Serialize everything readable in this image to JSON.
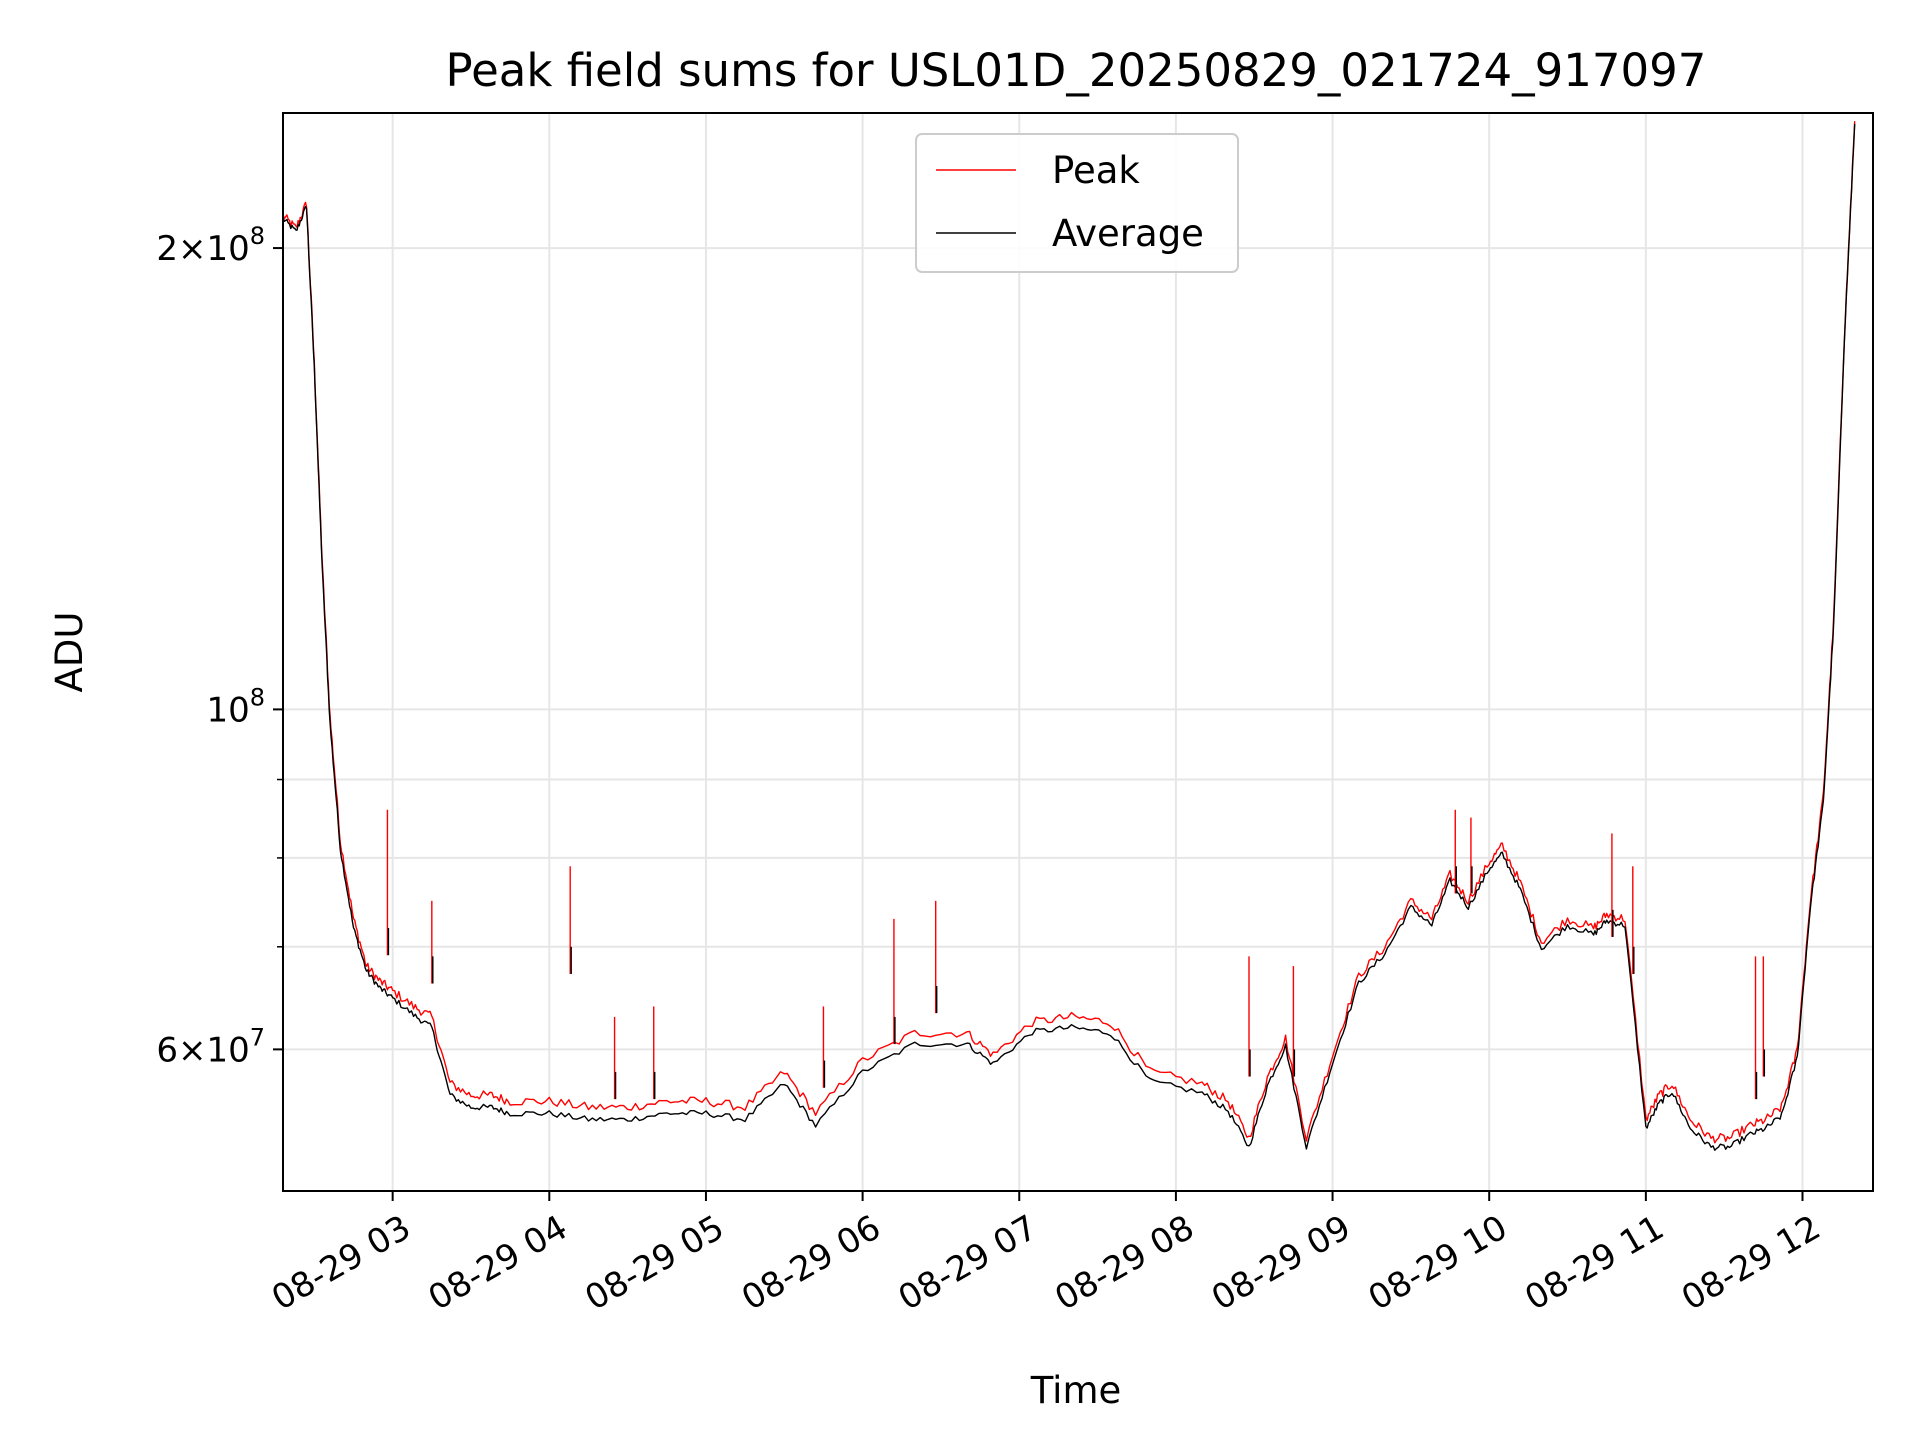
{
  "chart_data": {
    "type": "line",
    "title": "Peak field sums for USL01D_20250829_021724_917097",
    "xlabel": "Time",
    "ylabel": "ADU",
    "y_scale": "log",
    "xlim": [
      "2025-08-29 02:18",
      "2025-08-29 12:27"
    ],
    "ylim": [
      48500000,
      245000000
    ],
    "grid": true,
    "legend_position": "top-center",
    "x_ticks": [
      {
        "value": "2025-08-29 03:00",
        "label": "08-29 03"
      },
      {
        "value": "2025-08-29 04:00",
        "label": "08-29 04"
      },
      {
        "value": "2025-08-29 05:00",
        "label": "08-29 05"
      },
      {
        "value": "2025-08-29 06:00",
        "label": "08-29 06"
      },
      {
        "value": "2025-08-29 07:00",
        "label": "08-29 07"
      },
      {
        "value": "2025-08-29 08:00",
        "label": "08-29 08"
      },
      {
        "value": "2025-08-29 09:00",
        "label": "08-29 09"
      },
      {
        "value": "2025-08-29 10:00",
        "label": "08-29 10"
      },
      {
        "value": "2025-08-29 11:00",
        "label": "08-29 11"
      },
      {
        "value": "2025-08-29 12:00",
        "label": "08-29 12"
      }
    ],
    "y_ticks_major": [
      {
        "value": 60000000,
        "mantissa": "6",
        "exponent": "7"
      },
      {
        "value": 100000000,
        "mantissa": "",
        "exponent": "8"
      },
      {
        "value": 200000000,
        "mantissa": "2",
        "exponent": "8"
      }
    ],
    "y_ticks_minor": [
      70000000,
      80000000,
      90000000
    ],
    "x_datetimes": [
      "2025-08-29 02:18",
      "2025-08-29 02:23",
      "2025-08-29 02:27",
      "2025-08-29 02:30",
      "2025-08-29 02:33",
      "2025-08-29 02:36",
      "2025-08-29 02:40",
      "2025-08-29 02:45",
      "2025-08-29 02:50",
      "2025-08-29 02:55",
      "2025-08-29 03:00",
      "2025-08-29 03:08",
      "2025-08-29 03:15",
      "2025-08-29 03:22",
      "2025-08-29 03:30",
      "2025-08-29 03:38",
      "2025-08-29 03:45",
      "2025-08-29 04:00",
      "2025-08-29 04:15",
      "2025-08-29 04:30",
      "2025-08-29 04:45",
      "2025-08-29 05:00",
      "2025-08-29 05:15",
      "2025-08-29 05:30",
      "2025-08-29 05:42",
      "2025-08-29 06:00",
      "2025-08-29 06:20",
      "2025-08-29 06:40",
      "2025-08-29 06:50",
      "2025-08-29 07:05",
      "2025-08-29 07:20",
      "2025-08-29 07:35",
      "2025-08-29 07:50",
      "2025-08-29 08:10",
      "2025-08-29 08:20",
      "2025-08-29 08:28",
      "2025-08-29 08:35",
      "2025-08-29 08:42",
      "2025-08-29 08:50",
      "2025-08-29 09:00",
      "2025-08-29 09:10",
      "2025-08-29 09:20",
      "2025-08-29 09:30",
      "2025-08-29 09:38",
      "2025-08-29 09:45",
      "2025-08-29 09:52",
      "2025-08-29 10:00",
      "2025-08-29 10:05",
      "2025-08-29 10:12",
      "2025-08-29 10:20",
      "2025-08-29 10:30",
      "2025-08-29 10:40",
      "2025-08-29 10:45",
      "2025-08-29 10:52",
      "2025-08-29 11:00",
      "2025-08-29 11:05",
      "2025-08-29 11:10",
      "2025-08-29 11:17",
      "2025-08-29 11:25",
      "2025-08-29 11:32",
      "2025-08-29 11:40",
      "2025-08-29 11:46",
      "2025-08-29 11:52",
      "2025-08-29 11:58",
      "2025-08-29 12:03",
      "2025-08-29 12:08",
      "2025-08-29 12:12",
      "2025-08-29 12:16",
      "2025-08-29 12:20"
    ],
    "series": [
      {
        "name": "Peak",
        "color": "#ff0000",
        "values": [
          210000000,
          206000000,
          214000000,
          168000000,
          125000000,
          99000000,
          82000000,
          73000000,
          68000000,
          66500000,
          65500000,
          64000000,
          63000000,
          57000000,
          56000000,
          56000000,
          55500000,
          55500000,
          55000000,
          55000000,
          55500000,
          55500000,
          55000000,
          58000000,
          54500000,
          59000000,
          61500000,
          61500000,
          59500000,
          62500000,
          63000000,
          62500000,
          58000000,
          57000000,
          55500000,
          52500000,
          57500000,
          61000000,
          52500000,
          59500000,
          67000000,
          70000000,
          75000000,
          73000000,
          78000000,
          75000000,
          79500000,
          81500000,
          77000000,
          70500000,
          73000000,
          72000000,
          73500000,
          73000000,
          54000000,
          56000000,
          57000000,
          54000000,
          52500000,
          52500000,
          53500000,
          54000000,
          55000000,
          60000000,
          75000000,
          88000000,
          115000000,
          175000000,
          242000000
        ]
      },
      {
        "name": "Average",
        "color": "#000000",
        "values": [
          209000000,
          205000000,
          213000000,
          167000000,
          124000000,
          98000000,
          81000000,
          72000000,
          67500000,
          65800000,
          64800000,
          63200000,
          62000000,
          56000000,
          55000000,
          55000000,
          54500000,
          54500000,
          54000000,
          54000000,
          54500000,
          54500000,
          54000000,
          57000000,
          53500000,
          58000000,
          60500000,
          60500000,
          58700000,
          61600000,
          62000000,
          61500000,
          57200000,
          56200000,
          54700000,
          51800000,
          56800000,
          60300000,
          51800000,
          58800000,
          66300000,
          69300000,
          74300000,
          72300000,
          77300000,
          74300000,
          78700000,
          80500000,
          76200000,
          69800000,
          72300000,
          71300000,
          72800000,
          72300000,
          53300000,
          55300000,
          56300000,
          53300000,
          51800000,
          51800000,
          52800000,
          53300000,
          54300000,
          59300000,
          74300000,
          87000000,
          114000000,
          174000000,
          241000000
        ]
      }
    ],
    "spikes": [
      {
        "time": "2025-08-29 02:58",
        "peak": 86000000,
        "average": 72000000
      },
      {
        "time": "2025-08-29 03:15",
        "peak": 75000000,
        "average": 69000000
      },
      {
        "time": "2025-08-29 04:08",
        "peak": 79000000,
        "average": 70000000
      },
      {
        "time": "2025-08-29 04:25",
        "peak": 63000000,
        "average": 58000000
      },
      {
        "time": "2025-08-29 04:40",
        "peak": 64000000,
        "average": 58000000
      },
      {
        "time": "2025-08-29 05:45",
        "peak": 64000000,
        "average": 59000000
      },
      {
        "time": "2025-08-29 06:12",
        "peak": 73000000,
        "average": 63000000
      },
      {
        "time": "2025-08-29 06:28",
        "peak": 75000000,
        "average": 66000000
      },
      {
        "time": "2025-08-29 08:28",
        "peak": 69000000,
        "average": 60000000
      },
      {
        "time": "2025-08-29 08:45",
        "peak": 68000000,
        "average": 60000000
      },
      {
        "time": "2025-08-29 09:47",
        "peak": 86000000,
        "average": 79000000
      },
      {
        "time": "2025-08-29 09:53",
        "peak": 85000000,
        "average": 79000000
      },
      {
        "time": "2025-08-29 10:47",
        "peak": 83000000,
        "average": 74000000
      },
      {
        "time": "2025-08-29 10:55",
        "peak": 79000000,
        "average": 70000000
      },
      {
        "time": "2025-08-29 11:42",
        "peak": 69000000,
        "average": 58000000
      },
      {
        "time": "2025-08-29 11:45",
        "peak": 69000000,
        "average": 60000000
      }
    ]
  }
}
